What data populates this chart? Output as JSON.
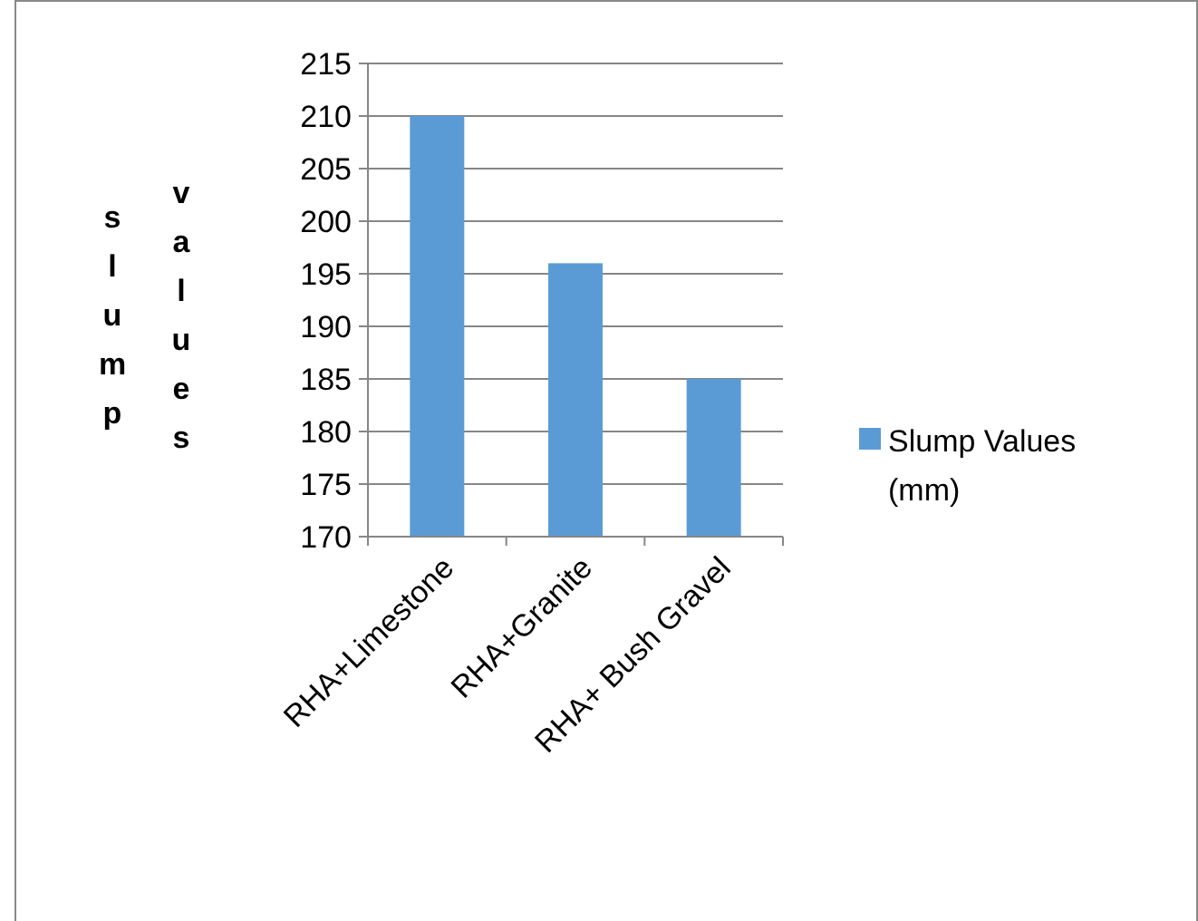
{
  "chart_data": {
    "type": "bar",
    "ylabel": "slump values",
    "categories": [
      "RHA+Limestone",
      "RHA+Granite",
      "RHA+ Bush Gravel"
    ],
    "series": [
      {
        "name": "Slump Values (mm)",
        "color": "#5b9bd5",
        "values": [
          210,
          196,
          185
        ]
      }
    ],
    "ylim": [
      170,
      215
    ],
    "yticks": [
      170,
      175,
      180,
      185,
      190,
      195,
      200,
      205,
      210,
      215
    ],
    "grid": "y",
    "legend": "right"
  }
}
